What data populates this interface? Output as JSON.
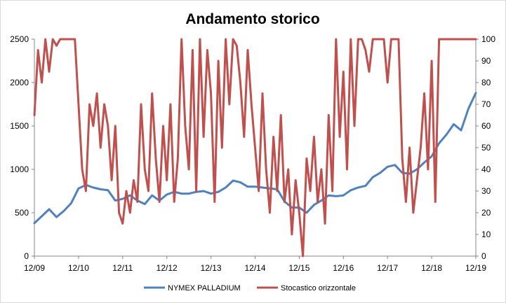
{
  "chart_data": {
    "type": "line",
    "title": "Andamento storico",
    "x_ticks": [
      "12/09",
      "12/10",
      "12/11",
      "12/12",
      "12/13",
      "12/14",
      "12/15",
      "12/16",
      "12/17",
      "12/18",
      "12/19"
    ],
    "y_left": {
      "ticks": [
        "0",
        "500",
        "1000",
        "1500",
        "2000",
        "2500"
      ],
      "range": [
        0,
        2500
      ]
    },
    "y_right": {
      "ticks": [
        "0",
        "10",
        "20",
        "30",
        "40",
        "50",
        "60",
        "70",
        "80",
        "90",
        "100"
      ],
      "range": [
        0,
        100
      ]
    },
    "grid": false,
    "legend_position": "bottom",
    "series": [
      {
        "name": "NYMEX PALLADIUM",
        "axis": "left",
        "color": "#4f81bd",
        "x": [
          "2009-12",
          "2010-02",
          "2010-04",
          "2010-06",
          "2010-08",
          "2010-10",
          "2010-12",
          "2011-02",
          "2011-04",
          "2011-06",
          "2011-08",
          "2011-10",
          "2011-12",
          "2012-02",
          "2012-04",
          "2012-06",
          "2012-08",
          "2012-10",
          "2012-12",
          "2013-02",
          "2013-04",
          "2013-06",
          "2013-08",
          "2013-10",
          "2013-12",
          "2014-02",
          "2014-04",
          "2014-06",
          "2014-08",
          "2014-10",
          "2014-12",
          "2015-02",
          "2015-04",
          "2015-06",
          "2015-08",
          "2015-10",
          "2015-12",
          "2016-02",
          "2016-04",
          "2016-06",
          "2016-08",
          "2016-10",
          "2016-12",
          "2017-02",
          "2017-04",
          "2017-06",
          "2017-08",
          "2017-10",
          "2017-12",
          "2018-02",
          "2018-04",
          "2018-06",
          "2018-08",
          "2018-10",
          "2018-12",
          "2019-02",
          "2019-04",
          "2019-06",
          "2019-08",
          "2019-10",
          "2019-12"
        ],
        "values": [
          380,
          460,
          540,
          450,
          520,
          610,
          780,
          820,
          790,
          770,
          760,
          640,
          660,
          700,
          640,
          600,
          700,
          640,
          710,
          740,
          720,
          720,
          740,
          750,
          720,
          740,
          790,
          870,
          850,
          800,
          800,
          790,
          780,
          770,
          630,
          560,
          560,
          500,
          590,
          640,
          700,
          690,
          700,
          760,
          790,
          810,
          910,
          960,
          1030,
          1050,
          960,
          950,
          1000,
          1080,
          1150,
          1300,
          1400,
          1520,
          1450,
          1700,
          1880
        ]
      },
      {
        "name": "Stocastico orizzontale",
        "axis": "right",
        "color": "#c0504d",
        "x": [
          "2009-12",
          "2010-01",
          "2010-02",
          "2010-03",
          "2010-04",
          "2010-05",
          "2010-06",
          "2010-07",
          "2010-08",
          "2010-09",
          "2010-10",
          "2010-11",
          "2010-12",
          "2011-01",
          "2011-02",
          "2011-03",
          "2011-04",
          "2011-05",
          "2011-06",
          "2011-07",
          "2011-08",
          "2011-09",
          "2011-10",
          "2011-11",
          "2011-12",
          "2012-01",
          "2012-02",
          "2012-03",
          "2012-04",
          "2012-05",
          "2012-06",
          "2012-07",
          "2012-08",
          "2012-09",
          "2012-10",
          "2012-11",
          "2012-12",
          "2013-01",
          "2013-02",
          "2013-03",
          "2013-04",
          "2013-05",
          "2013-06",
          "2013-07",
          "2013-08",
          "2013-09",
          "2013-10",
          "2013-11",
          "2013-12",
          "2014-01",
          "2014-02",
          "2014-03",
          "2014-04",
          "2014-05",
          "2014-06",
          "2014-07",
          "2014-08",
          "2014-09",
          "2014-10",
          "2014-11",
          "2014-12",
          "2015-01",
          "2015-02",
          "2015-03",
          "2015-04",
          "2015-05",
          "2015-06",
          "2015-07",
          "2015-08",
          "2015-09",
          "2015-10",
          "2015-11",
          "2015-12",
          "2016-01",
          "2016-02",
          "2016-03",
          "2016-04",
          "2016-05",
          "2016-06",
          "2016-07",
          "2016-08",
          "2016-09",
          "2016-10",
          "2016-11",
          "2016-12",
          "2017-01",
          "2017-02",
          "2017-03",
          "2017-04",
          "2017-05",
          "2017-06",
          "2017-07",
          "2017-08",
          "2017-09",
          "2017-10",
          "2017-11",
          "2017-12",
          "2018-01",
          "2018-02",
          "2018-03",
          "2018-04",
          "2018-05",
          "2018-06",
          "2018-07",
          "2018-08",
          "2018-09",
          "2018-10",
          "2018-11",
          "2018-12",
          "2019-01",
          "2019-02",
          "2019-03",
          "2019-04",
          "2019-05",
          "2019-06",
          "2019-07",
          "2019-08",
          "2019-09",
          "2019-10",
          "2019-11",
          "2019-12"
        ],
        "values": [
          65,
          95,
          80,
          100,
          85,
          100,
          97,
          100,
          100,
          100,
          100,
          100,
          70,
          40,
          30,
          70,
          60,
          75,
          50,
          70,
          60,
          35,
          60,
          20,
          15,
          30,
          20,
          35,
          25,
          70,
          40,
          30,
          75,
          45,
          25,
          60,
          35,
          70,
          25,
          45,
          100,
          60,
          40,
          95,
          30,
          100,
          55,
          95,
          75,
          25,
          90,
          50,
          100,
          70,
          100,
          97,
          80,
          55,
          95,
          70,
          50,
          30,
          75,
          40,
          20,
          55,
          30,
          65,
          25,
          40,
          10,
          35,
          20,
          0,
          45,
          30,
          55,
          25,
          40,
          15,
          65,
          30,
          100,
          55,
          85,
          40,
          100,
          60,
          100,
          100,
          95,
          85,
          100,
          100,
          100,
          100,
          80,
          100,
          100,
          100,
          45,
          25,
          50,
          20,
          35,
          50,
          75,
          40,
          90,
          25,
          100,
          100,
          100,
          100,
          100,
          100,
          100,
          100,
          100,
          100,
          100
        ]
      }
    ]
  }
}
